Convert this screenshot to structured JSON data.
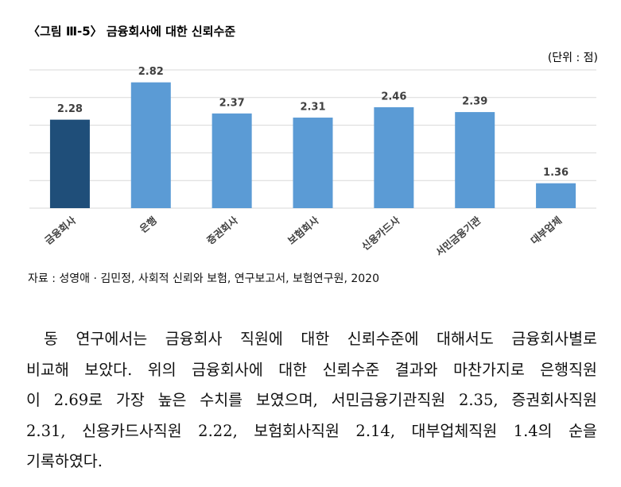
{
  "chart_data": {
    "type": "bar",
    "title": "〈그림 Ⅲ-5〉 금융회사에 대한 신뢰수준",
    "unit": "(단위 : 점)",
    "categories": [
      "금융회사",
      "은행",
      "증권회사",
      "보험회사",
      "신용카드사",
      "서민금융기관",
      "대부업체"
    ],
    "values": [
      2.28,
      2.82,
      2.37,
      2.31,
      2.46,
      2.39,
      1.36
    ],
    "colors": [
      "#1f4e79",
      "#5b9bd5",
      "#5b9bd5",
      "#5b9bd5",
      "#5b9bd5",
      "#5b9bd5",
      "#5b9bd5"
    ],
    "ylim": [
      1,
      3
    ],
    "yticks": [
      1,
      1.4,
      1.8,
      2.2,
      2.6,
      3
    ],
    "grid": true
  },
  "source": "자료 : 성영애 · 김민정, 사회적 신뢰와 보험, 연구보고서, 보험연구원, 2020",
  "paragraph": [
    "동 연구에서는 금융회사 직원에 대한 신뢰수준에 대해서도 금융회사별로",
    "비교해 보았다. 위의 금융회사에 대한 신뢰수준 결과와 마찬가지로 은행직원",
    "이 2.69로 가장 높은 수치를 보였으며, 서민금융기관직원 2.35, 증권회사직원",
    "2.31, 신용카드사직원 2.22, 보험회사직원 2.14, 대부업체직원 1.4의 순을",
    "기록하였다."
  ]
}
